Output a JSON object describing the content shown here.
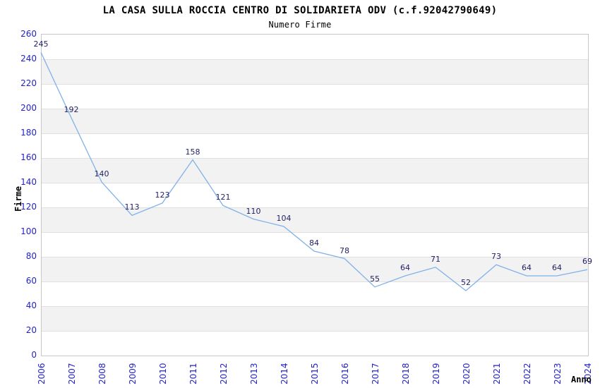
{
  "chart_data": {
    "type": "line",
    "title": "LA CASA SULLA ROCCIA CENTRO DI SOLIDARIETA ODV (c.f.92042790649)",
    "subtitle": "Numero Firme",
    "xlabel": "Anno",
    "ylabel": "Firme",
    "x": [
      "2006",
      "2007",
      "2008",
      "2009",
      "2010",
      "2011",
      "2012",
      "2013",
      "2014",
      "2015",
      "2016",
      "2017",
      "2018",
      "2019",
      "2020",
      "2021",
      "2022",
      "2023",
      "2024"
    ],
    "values": [
      245,
      192,
      140,
      113,
      123,
      158,
      121,
      110,
      104,
      84,
      78,
      55,
      64,
      71,
      52,
      73,
      64,
      64,
      69
    ],
    "ylim": [
      0,
      260
    ],
    "ytick_step": 20,
    "yticks": [
      0,
      20,
      40,
      60,
      80,
      100,
      120,
      140,
      160,
      180,
      200,
      220,
      240,
      260
    ],
    "grid": true,
    "alternating_bands": true,
    "legend": "none",
    "colors": {
      "line": "#7fb2e8",
      "point_label": "#222266",
      "tick_label": "#2222cc",
      "band": "#f2f2f2",
      "gridline": "#e0e0e0",
      "plot_border": "#c8c8c8",
      "title": "#000000"
    }
  }
}
